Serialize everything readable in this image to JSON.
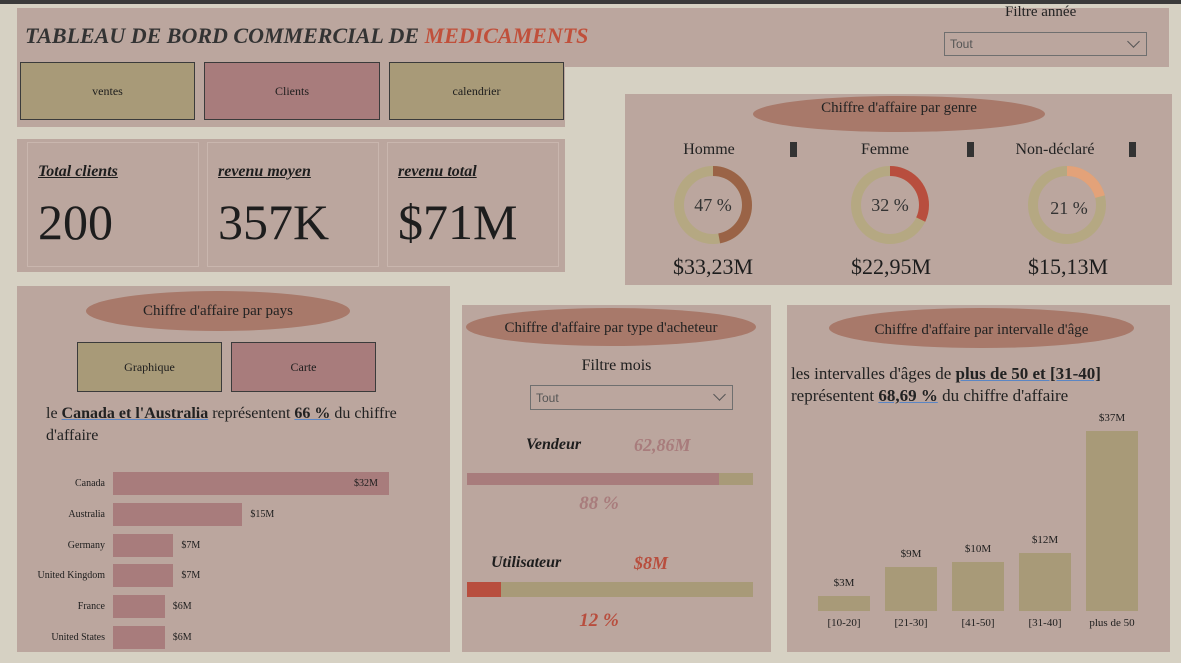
{
  "header": {
    "title_part1": "TABLEAU DE BORD COMMERCIAL DE ",
    "title_part2": "MEDICAMENTS",
    "year_filter_label": "Filtre année",
    "year_filter_value": "Tout"
  },
  "nav": {
    "sales": "ventes",
    "clients": "Clients",
    "calendar": "calendrier"
  },
  "kpis": [
    {
      "label": "Total clients",
      "value": "200"
    },
    {
      "label": "revenu moyen",
      "value": "357K"
    },
    {
      "label": "revenu total",
      "value": "$71M"
    }
  ],
  "gender": {
    "title": "Chiffre d'affaire par genre",
    "items": [
      {
        "label": "Homme",
        "pct_text": "47 %",
        "pct": 47,
        "value": "$33,23M",
        "color": "#9a6346"
      },
      {
        "label": "Femme",
        "pct_text": "32 %",
        "pct": 32,
        "value": "$22,95M",
        "color": "#b84e3e"
      },
      {
        "label": "Non-déclaré",
        "pct_text": "21 %",
        "pct": 21,
        "value": "$15,13M",
        "color": "#e3a279"
      }
    ],
    "track_color": "#b5a882"
  },
  "country": {
    "title": "Chiffre d'affaire par pays",
    "btn_chart": "Graphique",
    "btn_map": "Carte",
    "stmt_pre": "le ",
    "stmt_bold": "Canada et l'Australia",
    "stmt_mid": " représentent ",
    "stmt_pct": "66 %",
    "stmt_post": " du chiffre d'affaire",
    "bars": [
      {
        "label": "Canada",
        "value": 32,
        "text": "$32M"
      },
      {
        "label": "Australia",
        "value": 15,
        "text": "$15M"
      },
      {
        "label": "Germany",
        "value": 7,
        "text": "$7M"
      },
      {
        "label": "United Kingdom",
        "value": 7,
        "text": "$7M"
      },
      {
        "label": "France",
        "value": 6,
        "text": "$6M"
      },
      {
        "label": "United States",
        "value": 6,
        "text": "$6M"
      }
    ]
  },
  "buyer": {
    "title": "Chiffre d'affaire par type d'acheteur",
    "month_filter_label": "Filtre mois",
    "month_filter_value": "Tout",
    "seller_label": "Vendeur",
    "seller_value": "62,86M",
    "seller_pct_text": "88 %",
    "seller_pct": 88,
    "user_label": "Utilisateur",
    "user_value": "$8M",
    "user_pct_text": "12 %",
    "user_pct": 12
  },
  "age": {
    "title": "Chiffre d'affaire par intervalle d'âge",
    "stmt_pre": "les intervalles d'âges de ",
    "stmt_bold": "plus de 50 et [31-40]",
    "stmt_mid": " représentent ",
    "stmt_pct": "68,69 %",
    "stmt_post": " du chiffre d'affaire",
    "bars": [
      {
        "label": "[10-20]",
        "value": 3,
        "text": "$3M"
      },
      {
        "label": "[21-30]",
        "value": 9,
        "text": "$9M"
      },
      {
        "label": "[41-50]",
        "value": 10,
        "text": "$10M"
      },
      {
        "label": "[31-40]",
        "value": 12,
        "text": "$12M"
      },
      {
        "label": "plus de 50",
        "value": 37,
        "text": "$37M"
      }
    ]
  }
}
